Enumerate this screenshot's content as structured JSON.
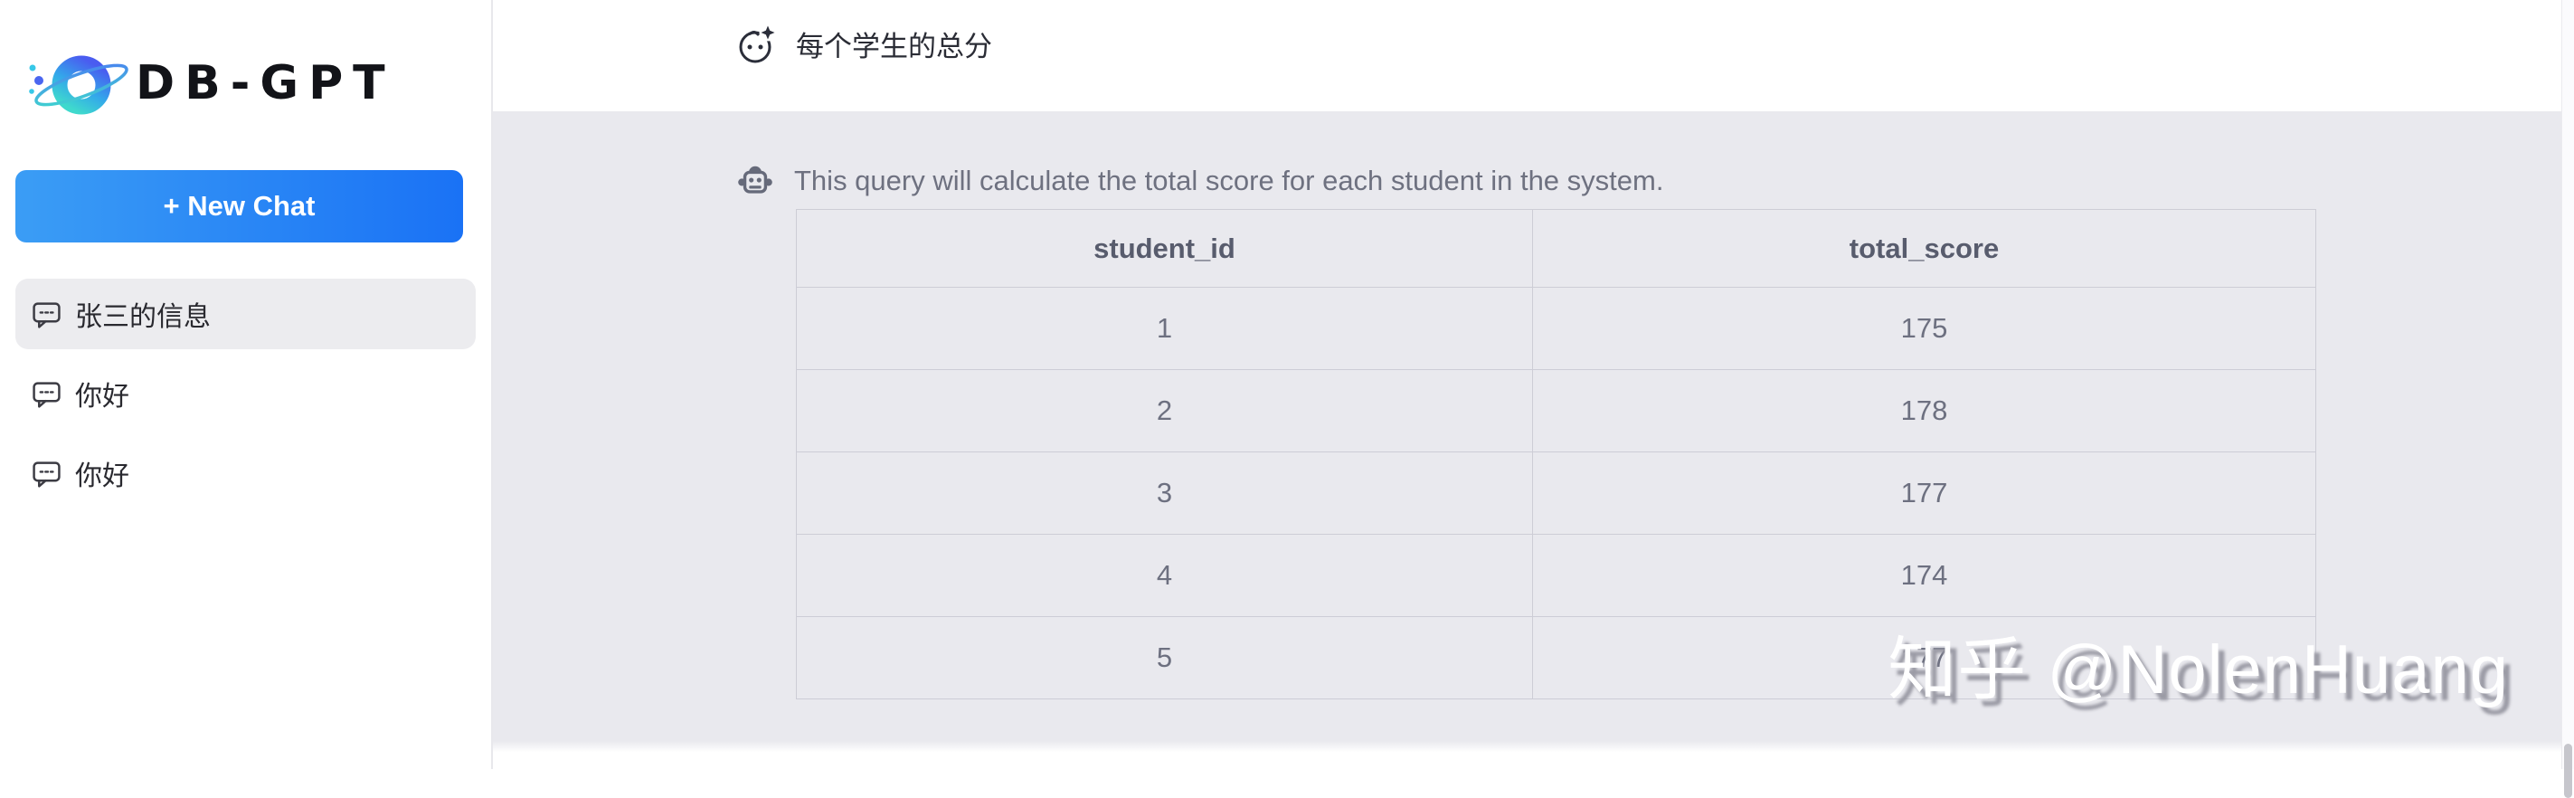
{
  "app": {
    "title": "DB-GPT"
  },
  "colors": {
    "accent_gradient_start": "#3b9df5",
    "accent_gradient_end": "#1a72f5",
    "bot_band_bg": "#e9e9ee",
    "table_border": "#cdcdd6",
    "active_chat_bg": "#ececef",
    "logo_blue": "#4a63f2",
    "logo_cyan": "#3fd9cd"
  },
  "sidebar": {
    "logo": {
      "text": "DB-GPT",
      "icon": "planet-icon"
    },
    "new_chat": {
      "label": "+ New Chat"
    },
    "chats": [
      {
        "label": "张三的信息",
        "icon": "speech-bubble-icon",
        "active": true
      },
      {
        "label": "你好",
        "icon": "speech-bubble-icon",
        "active": false
      },
      {
        "label": "你好",
        "icon": "speech-bubble-icon",
        "active": false
      }
    ]
  },
  "conversation": {
    "user_message": {
      "icon": "face-sparkle-icon",
      "text": "每个学生的总分"
    },
    "bot_message": {
      "icon": "robot-icon",
      "text": "This query will calculate the total score for each student in the system."
    }
  },
  "result_table": {
    "columns": [
      "student_id",
      "total_score"
    ],
    "rows": [
      [
        "1",
        "175"
      ],
      [
        "2",
        "178"
      ],
      [
        "3",
        "177"
      ],
      [
        "4",
        "174"
      ],
      [
        "5",
        "177"
      ]
    ]
  },
  "watermark": {
    "text": "知乎 @NolenHuang"
  }
}
